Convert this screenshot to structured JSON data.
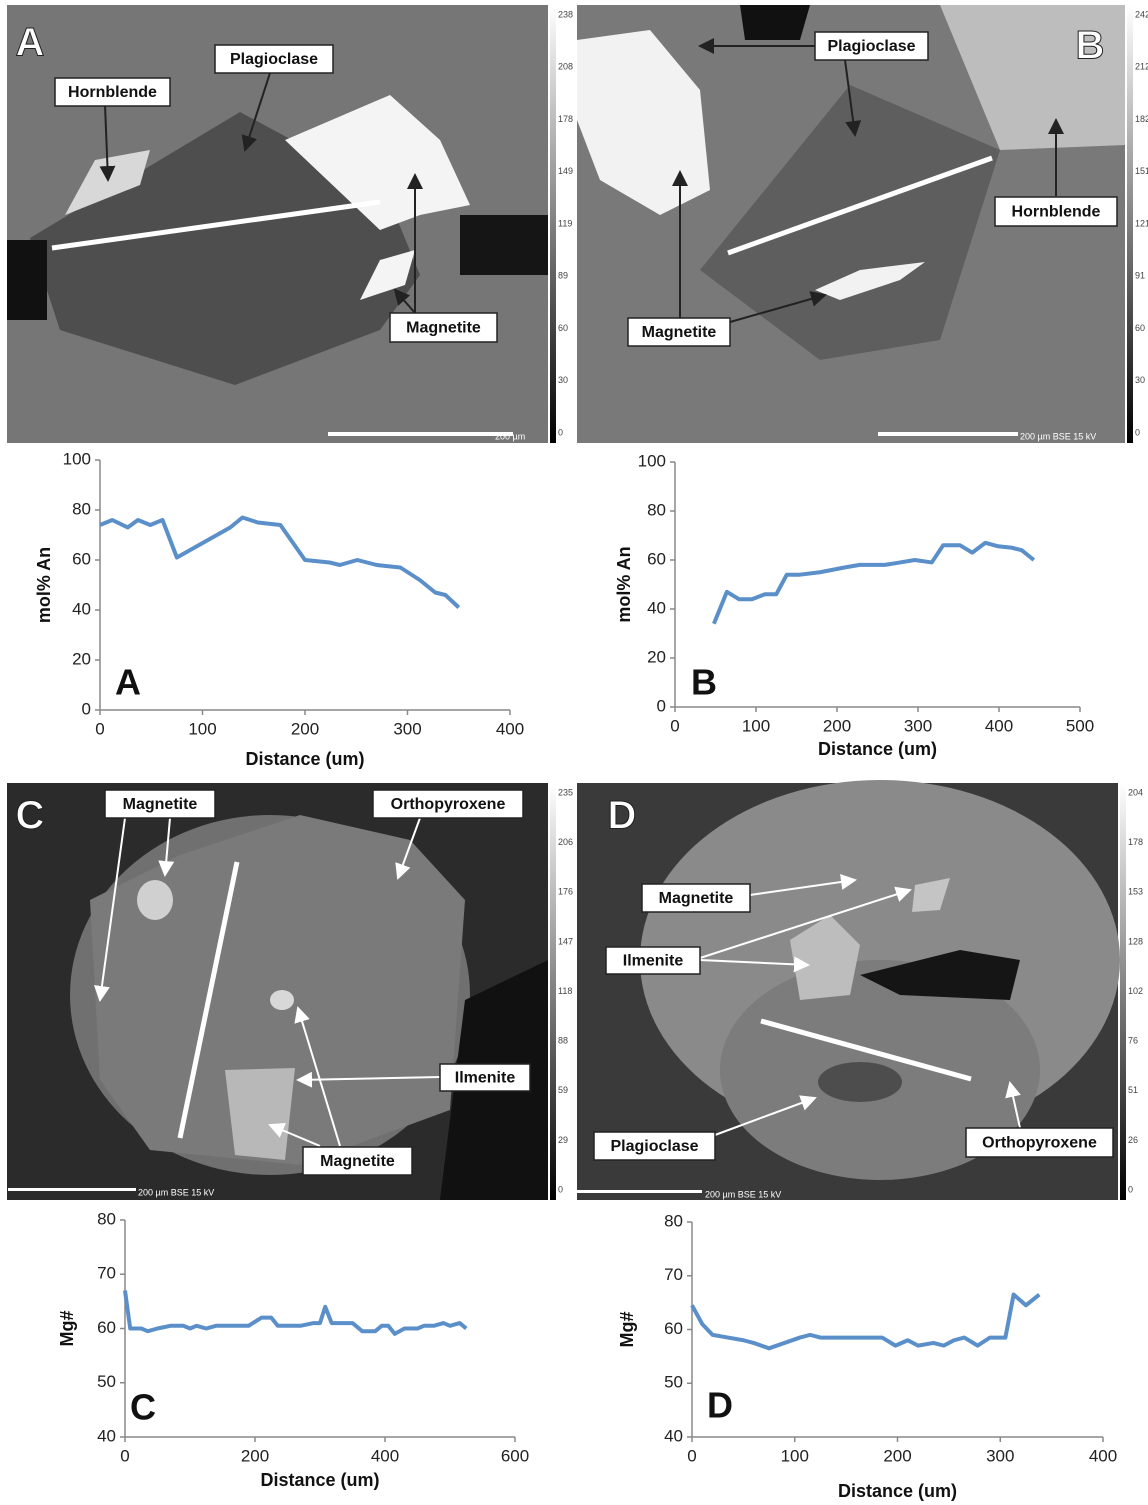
{
  "images": [
    {
      "panel": "A",
      "labels": [
        "Hornblende",
        "Plagioclase",
        "Magnetite"
      ],
      "colorbar": [
        238,
        208,
        178,
        149,
        119,
        89,
        60,
        30,
        0
      ],
      "scale": "200 µm"
    },
    {
      "panel": "B",
      "labels": [
        "Plagioclase",
        "Hornblende",
        "Magnetite"
      ],
      "colorbar": [
        242,
        212,
        182,
        151,
        121,
        91,
        60,
        30,
        0
      ],
      "scale": "200 µm BSE 15 kV"
    },
    {
      "panel": "C",
      "labels": [
        "Magnetite",
        "Orthopyroxene",
        "Ilmenite",
        "Magnetite"
      ],
      "colorbar": [
        235,
        206,
        176,
        147,
        118,
        88,
        59,
        29,
        0
      ],
      "scale": "200 µm BSE 15 kV"
    },
    {
      "panel": "D",
      "labels": [
        "Magnetite",
        "Ilmenite",
        "Plagioclase",
        "Orthopyroxene"
      ],
      "colorbar": [
        204,
        178,
        153,
        128,
        102,
        76,
        51,
        26,
        0
      ],
      "scale": "200 µm BSE 15 kV"
    }
  ],
  "chart_data": [
    {
      "type": "line",
      "annotation": "A",
      "xlabel": "Distance (um)",
      "ylabel": "mol% An",
      "x": [
        0,
        12,
        27,
        37,
        49,
        61,
        75,
        127,
        139,
        154,
        176,
        200,
        224,
        234,
        251,
        270,
        293,
        312,
        327,
        337,
        350
      ],
      "series": [
        {
          "color": "#5b8fc9",
          "values": [
            74,
            76,
            73,
            76,
            74,
            76,
            61,
            73,
            77,
            75,
            74,
            60,
            59,
            58,
            60,
            58,
            57,
            52,
            47,
            46,
            41
          ]
        }
      ],
      "xlim": [
        0,
        400
      ],
      "ylim": [
        0,
        100
      ],
      "xticks": [
        0,
        100,
        200,
        300,
        400
      ],
      "yticks": [
        0,
        20,
        40,
        60,
        80,
        100
      ]
    },
    {
      "type": "line",
      "annotation": "B",
      "xlabel": "Distance (um)",
      "ylabel": "mol% An",
      "x": [
        48,
        64,
        79,
        95,
        111,
        125,
        138,
        154,
        179,
        210,
        228,
        259,
        278,
        296,
        317,
        331,
        352,
        367,
        383,
        399,
        416,
        428,
        443
      ],
      "series": [
        {
          "color": "#5b8fc9",
          "values": [
            34,
            47,
            44,
            44,
            46,
            46,
            54,
            54,
            55,
            57,
            58,
            58,
            59,
            60,
            59,
            66,
            66,
            63,
            67,
            65.6,
            65,
            64,
            60
          ]
        }
      ],
      "xlim": [
        0,
        500
      ],
      "ylim": [
        0,
        100
      ],
      "xticks": [
        0,
        100,
        200,
        300,
        400,
        500
      ],
      "yticks": [
        0,
        20,
        40,
        60,
        80,
        100
      ]
    },
    {
      "type": "line",
      "annotation": "C",
      "xlabel": "Distance (um)",
      "ylabel": "Mg#",
      "x": [
        0,
        8,
        25,
        35,
        50,
        70,
        90,
        100,
        110,
        125,
        140,
        160,
        190,
        210,
        225,
        235,
        270,
        290,
        300,
        308,
        318,
        350,
        365,
        385,
        395,
        405,
        415,
        430,
        450,
        460,
        475,
        490,
        500,
        515,
        525
      ],
      "series": [
        {
          "color": "#5b8fc9",
          "values": [
            67,
            60,
            60,
            59.5,
            60,
            60.5,
            60.5,
            60,
            60.5,
            60,
            60.5,
            60.5,
            60.5,
            62,
            62,
            60.5,
            60.5,
            61,
            61,
            64,
            61,
            61,
            59.5,
            59.5,
            60.5,
            60.5,
            59,
            60,
            60,
            60.5,
            60.5,
            61,
            60.5,
            61,
            60
          ]
        }
      ],
      "xlim": [
        0,
        600
      ],
      "ylim": [
        40,
        80
      ],
      "xticks": [
        0,
        200,
        400,
        600
      ],
      "yticks": [
        40,
        50,
        60,
        70,
        80
      ]
    },
    {
      "type": "line",
      "annotation": "D",
      "xlabel": "Distance (um)",
      "ylabel": "Mg#",
      "x": [
        0,
        10,
        20,
        35,
        50,
        60,
        75,
        90,
        105,
        115,
        125,
        140,
        160,
        185,
        198,
        210,
        220,
        235,
        245,
        255,
        265,
        278,
        290,
        305,
        313,
        325,
        338
      ],
      "series": [
        {
          "color": "#5b8fc9",
          "values": [
            64.5,
            61,
            59,
            58.5,
            58,
            57.5,
            56.5,
            57.5,
            58.5,
            59,
            58.5,
            58.5,
            58.5,
            58.5,
            57,
            58,
            57,
            57.5,
            57,
            58,
            58.5,
            57,
            58.5,
            58.5,
            66.5,
            64.5,
            66.5
          ]
        }
      ],
      "xlim": [
        0,
        400
      ],
      "ylim": [
        40,
        80
      ],
      "xticks": [
        0,
        100,
        200,
        300,
        400
      ],
      "yticks": [
        40,
        50,
        60,
        70,
        80
      ]
    }
  ]
}
